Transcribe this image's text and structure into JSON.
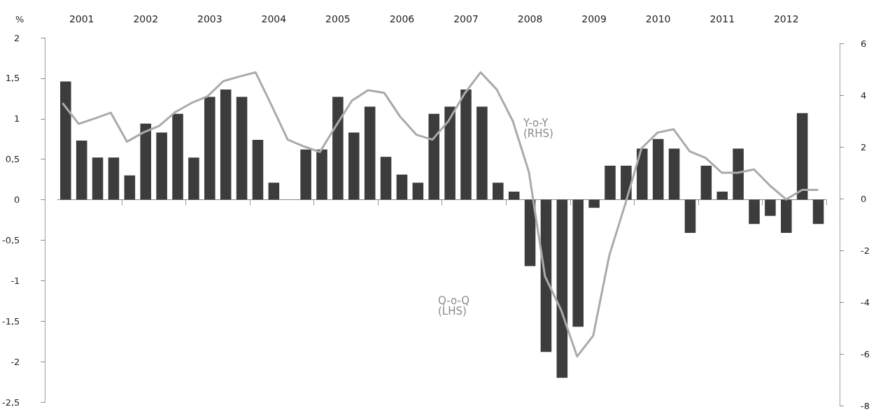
{
  "chart_data": {
    "type": "bar",
    "ylabel": "%",
    "categories": [
      null,
      "2001",
      null,
      null,
      null,
      "2002",
      null,
      null,
      null,
      "2003",
      null,
      null,
      null,
      "2004",
      null,
      null,
      null,
      "2005",
      null,
      null,
      null,
      "2006",
      null,
      null,
      null,
      "2007",
      null,
      null,
      null,
      "2008",
      null,
      null,
      null,
      "2009",
      null,
      null,
      null,
      "2010",
      null,
      null,
      null,
      "2011",
      null,
      null,
      null,
      "2012",
      null,
      null
    ],
    "series": [
      {
        "color": "#3c3c3c",
        "values": [
          1.46,
          0.73,
          0.52,
          0.52,
          0.3,
          0.94,
          0.83,
          1.06,
          0.52,
          1.27,
          1.36,
          1.27,
          0.74,
          0.21,
          0,
          0.62,
          0.62,
          1.27,
          0.83,
          1.15,
          0.53,
          0.31,
          0.21,
          1.06,
          1.15,
          1.36,
          1.15,
          0.21,
          0.1,
          -0.82,
          -1.88,
          -2.2,
          -1.57,
          -0.1,
          0.42,
          0.42,
          0.63,
          0.75,
          0.63,
          -0.41,
          0.42,
          0.1,
          0.63,
          -0.3,
          -0.2,
          -0.41,
          1.07,
          -0.3
        ]
      },
      {
        "type": "line",
        "axis": "y2",
        "color": "#aaaaaa",
        "values": [
          3.69,
          2.89,
          3.1,
          3.32,
          2.2,
          2.55,
          2.81,
          3.34,
          3.69,
          3.95,
          4.54,
          4.72,
          4.88,
          3.6,
          2.28,
          2.02,
          1.8,
          2.81,
          3.79,
          4.19,
          4.09,
          3.16,
          2.47,
          2.28,
          3.0,
          4.06,
          4.88,
          4.22,
          3.0,
          1.03,
          -3.0,
          -4.3,
          -6.1,
          -5.3,
          -2.2,
          -0.2,
          1.94,
          2.55,
          2.68,
          1.83,
          1.57,
          1.0,
          1.0,
          1.13,
          0.5,
          -0.03,
          0.34,
          0.34
        ]
      }
    ],
    "ylim": [
      -2.5,
      2
    ],
    "yticks": [
      {
        "value": -2.5,
        "label": "-2,5"
      },
      -2,
      {
        "value": -1.5,
        "label": "-1,5"
      },
      -1,
      {
        "value": -0.5,
        "label": "-0,5"
      },
      0,
      {
        "value": 0.5,
        "label": "0,5"
      },
      1,
      {
        "value": 1.5,
        "label": "1,5"
      },
      2
    ],
    "y2lim": [
      -8,
      6
    ],
    "y2ticks": [
      -8,
      -6,
      -4,
      -2,
      0,
      2,
      4,
      6
    ],
    "annotations": [
      "Y-o-Y\n(RHS)",
      "Q-o-Q\n(LHS)"
    ],
    "marker": "none"
  }
}
